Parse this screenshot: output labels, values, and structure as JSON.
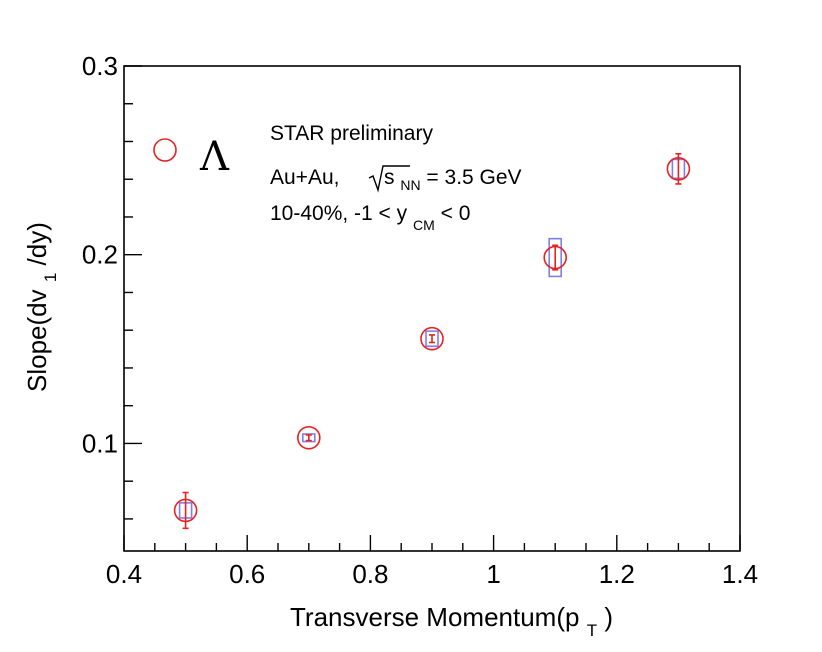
{
  "chart_data": {
    "type": "scatter",
    "xlabel": "Transverse Momentum(p",
    "xlabel_sub": "T",
    "xlabel_tail": ")",
    "ylabel": "Slope(dv",
    "ylabel_sub": "1",
    "ylabel_tail": "/dy)",
    "xlim": [
      0.4,
      1.4
    ],
    "ylim": [
      0.043,
      0.3
    ],
    "x_ticks": [
      {
        "value": 0.4,
        "label": "0.4"
      },
      {
        "value": 0.6,
        "label": "0.6"
      },
      {
        "value": 0.8,
        "label": "0.8"
      },
      {
        "value": 1.0,
        "label": "1"
      },
      {
        "value": 1.2,
        "label": "1.2"
      },
      {
        "value": 1.4,
        "label": "1.4"
      }
    ],
    "y_ticks": [
      {
        "value": 0.1,
        "label": "0.1"
      },
      {
        "value": 0.2,
        "label": "0.2"
      },
      {
        "value": 0.3,
        "label": "0.3"
      }
    ],
    "series": [
      {
        "name": "Λ",
        "color": "#e8211f",
        "syst_color": "#7f7fe6",
        "points": [
          {
            "x": 0.5,
            "y": 0.0645,
            "stat": 0.0095,
            "syst": 0.004
          },
          {
            "x": 0.7,
            "y": 0.103,
            "stat": 0.0015,
            "syst": 0.002
          },
          {
            "x": 0.9,
            "y": 0.1555,
            "stat": 0.002,
            "syst": 0.004
          },
          {
            "x": 1.1,
            "y": 0.1985,
            "stat": 0.0065,
            "syst": 0.01
          },
          {
            "x": 1.3,
            "y": 0.2455,
            "stat": 0.008,
            "syst": 0.005
          }
        ]
      }
    ],
    "annotations": {
      "line1": "STAR preliminary",
      "line2_pre": "Au+Au, ",
      "line2_s": "s",
      "line2_s_sub": "NN",
      "line2_post": " = 3.5 GeV",
      "line3_pre": "10-40%, -1 < y",
      "line3_sub": "CM",
      "line3_post": " < 0"
    },
    "legend": {
      "label": "Λ",
      "placement": "top-left"
    }
  }
}
